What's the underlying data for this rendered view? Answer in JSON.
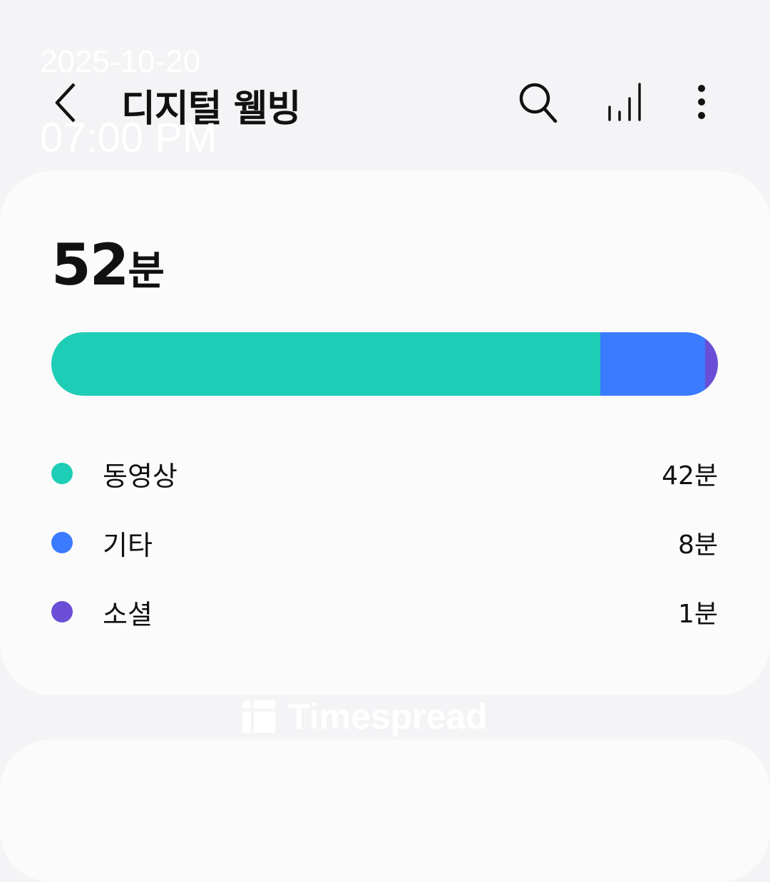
{
  "overlay": {
    "date": "2025-10-20",
    "time": "07:00 PM"
  },
  "header": {
    "title": "디지털 웰빙",
    "icons": [
      "back-icon",
      "search-icon",
      "signal-bars-icon",
      "more-vertical-icon"
    ]
  },
  "summary": {
    "total_value": "52",
    "total_unit": "분"
  },
  "usage": {
    "items": [
      {
        "label": "동영상",
        "value": "42분",
        "minutes": 42,
        "color": "#1ecdb6"
      },
      {
        "label": "기타",
        "value": "8분",
        "minutes": 8,
        "color": "#3a7bff"
      },
      {
        "label": "소셜",
        "value": "1분",
        "minutes": 1,
        "color": "#6a4fd6"
      }
    ]
  },
  "watermark": {
    "text": "Timespread"
  }
}
